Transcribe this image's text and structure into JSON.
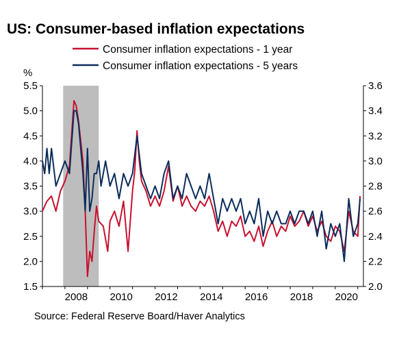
{
  "chart_data": {
    "type": "line",
    "title": "US: Consumer-based inflation expectations",
    "left_axis_label": "%",
    "source": "Source: Federal Reserve Board/Haver Analytics",
    "recession_shading": {
      "start": 2007.92,
      "end": 2009.5,
      "color": "#bdbdbd"
    },
    "x_range": [
      2007.0,
      2021.25
    ],
    "x_ticks": [
      "2008",
      "2010",
      "2012",
      "2014",
      "2016",
      "2018",
      "2020"
    ],
    "y_left": {
      "range": [
        1.5,
        5.5
      ],
      "ticks": [
        "1.5",
        "2.0",
        "2.5",
        "3.0",
        "3.5",
        "4.0",
        "4.5",
        "5.0",
        "5.5"
      ]
    },
    "y_right": {
      "range": [
        2.0,
        3.6
      ],
      "ticks": [
        "2.0",
        "2.2",
        "2.4",
        "2.6",
        "2.8",
        "3.0",
        "3.2",
        "3.4",
        "3.6"
      ]
    },
    "series": [
      {
        "name": "Consumer inflation expectations - 1 year",
        "axis": "left",
        "color": "#c8102e",
        "x": [
          2007.0,
          2007.2,
          2007.4,
          2007.6,
          2007.8,
          2008.0,
          2008.2,
          2008.4,
          2008.5,
          2008.6,
          2008.8,
          2008.9,
          2009.0,
          2009.1,
          2009.2,
          2009.3,
          2009.4,
          2009.5,
          2009.7,
          2009.9,
          2010.0,
          2010.2,
          2010.4,
          2010.6,
          2010.8,
          2011.0,
          2011.1,
          2011.2,
          2011.3,
          2011.4,
          2011.6,
          2011.8,
          2012.0,
          2012.2,
          2012.4,
          2012.6,
          2012.8,
          2013.0,
          2013.2,
          2013.4,
          2013.6,
          2013.8,
          2014.0,
          2014.2,
          2014.4,
          2014.6,
          2014.8,
          2015.0,
          2015.2,
          2015.4,
          2015.6,
          2015.8,
          2016.0,
          2016.2,
          2016.4,
          2016.6,
          2016.8,
          2017.0,
          2017.2,
          2017.4,
          2017.6,
          2017.8,
          2018.0,
          2018.2,
          2018.4,
          2018.6,
          2018.8,
          2019.0,
          2019.2,
          2019.4,
          2019.6,
          2019.8,
          2020.0,
          2020.2,
          2020.4,
          2020.6,
          2020.8,
          2021.0,
          2021.1
        ],
        "values": [
          3.0,
          3.2,
          3.3,
          3.0,
          3.4,
          3.6,
          3.9,
          5.2,
          5.1,
          4.8,
          4.0,
          3.0,
          1.7,
          2.2,
          2.0,
          2.6,
          3.1,
          2.8,
          2.7,
          2.2,
          2.8,
          3.0,
          2.7,
          3.2,
          2.2,
          3.4,
          3.8,
          4.6,
          4.0,
          3.6,
          3.4,
          3.1,
          3.3,
          3.1,
          3.4,
          3.9,
          3.2,
          3.5,
          3.1,
          3.3,
          3.1,
          3.0,
          3.2,
          3.1,
          3.3,
          3.0,
          2.6,
          2.8,
          2.5,
          2.8,
          2.7,
          2.9,
          2.5,
          2.6,
          2.4,
          2.7,
          2.3,
          2.6,
          2.8,
          2.5,
          2.7,
          2.6,
          2.9,
          2.7,
          2.8,
          3.0,
          2.7,
          2.9,
          2.6,
          2.8,
          2.5,
          2.4,
          2.7,
          2.6,
          2.2,
          3.0,
          2.6,
          2.5,
          3.3
        ]
      },
      {
        "name": "Consumer inflation expectations - 5 years",
        "axis": "right",
        "color": "#0b2c5a",
        "x": [
          2007.0,
          2007.1,
          2007.2,
          2007.3,
          2007.4,
          2007.6,
          2007.8,
          2008.0,
          2008.2,
          2008.4,
          2008.5,
          2008.6,
          2008.8,
          2008.9,
          2009.0,
          2009.1,
          2009.2,
          2009.3,
          2009.4,
          2009.5,
          2009.6,
          2009.8,
          2010.0,
          2010.2,
          2010.4,
          2010.6,
          2010.8,
          2011.0,
          2011.2,
          2011.4,
          2011.6,
          2011.8,
          2012.0,
          2012.2,
          2012.4,
          2012.6,
          2012.8,
          2013.0,
          2013.2,
          2013.4,
          2013.6,
          2013.8,
          2014.0,
          2014.2,
          2014.4,
          2014.6,
          2014.8,
          2015.0,
          2015.2,
          2015.4,
          2015.6,
          2015.8,
          2016.0,
          2016.2,
          2016.4,
          2016.6,
          2016.8,
          2017.0,
          2017.2,
          2017.4,
          2017.6,
          2017.8,
          2018.0,
          2018.2,
          2018.4,
          2018.6,
          2018.8,
          2019.0,
          2019.2,
          2019.4,
          2019.6,
          2019.8,
          2020.0,
          2020.2,
          2020.4,
          2020.6,
          2020.8,
          2021.0,
          2021.1
        ],
        "values": [
          3.0,
          2.9,
          3.1,
          2.9,
          3.1,
          2.8,
          2.9,
          3.0,
          2.9,
          3.4,
          3.4,
          3.3,
          2.9,
          2.6,
          3.1,
          2.6,
          2.7,
          2.9,
          2.9,
          3.0,
          2.8,
          3.0,
          2.8,
          2.9,
          2.7,
          2.9,
          2.8,
          2.9,
          3.2,
          2.9,
          2.8,
          2.7,
          2.8,
          2.7,
          2.9,
          3.0,
          2.7,
          2.8,
          2.7,
          2.9,
          2.8,
          2.7,
          2.8,
          2.7,
          2.9,
          2.7,
          2.5,
          2.7,
          2.6,
          2.7,
          2.6,
          2.7,
          2.5,
          2.6,
          2.5,
          2.7,
          2.4,
          2.6,
          2.5,
          2.6,
          2.5,
          2.5,
          2.6,
          2.5,
          2.6,
          2.6,
          2.5,
          2.6,
          2.4,
          2.6,
          2.3,
          2.5,
          2.4,
          2.5,
          2.2,
          2.7,
          2.4,
          2.5,
          2.7
        ]
      }
    ]
  }
}
